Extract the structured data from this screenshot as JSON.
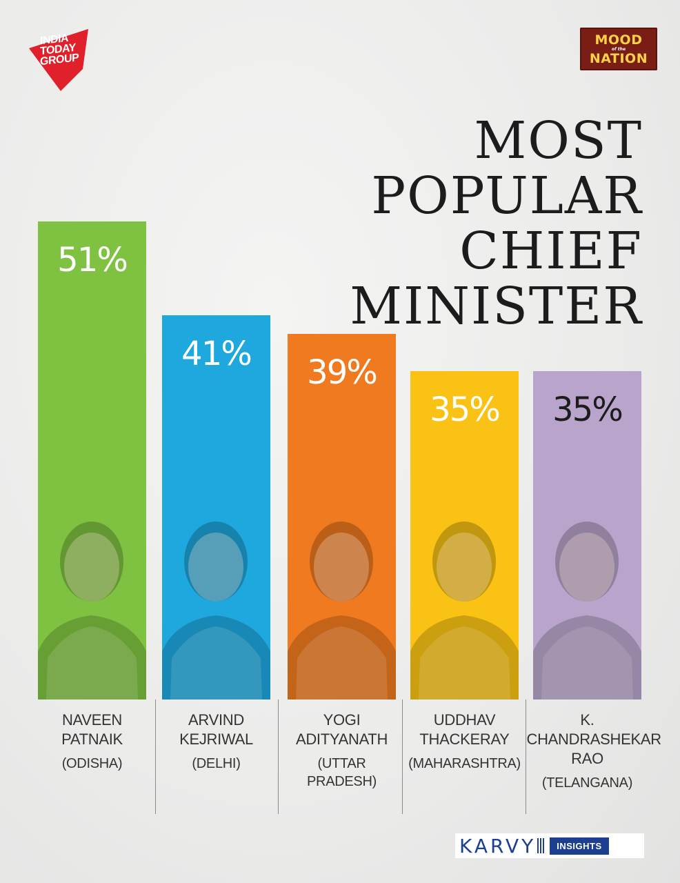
{
  "brand": {
    "logo_lines": [
      "INDIA",
      "TODAY",
      "GROUP"
    ],
    "badge_top": "MOOD",
    "badge_mid": "of the",
    "badge_bottom": "NATION",
    "sponsor_word": "KARVY",
    "sponsor_tag": "INSIGHTS"
  },
  "colors": {
    "logo_red": "#e0202a",
    "badge_bg": "#7a1d14",
    "sponsor_blue": "#1d3f8f"
  },
  "chart_data": {
    "type": "bar",
    "title_lines": [
      "MOST",
      "POPULAR",
      "CHIEF",
      "MINISTER"
    ],
    "unit": "%",
    "ylim": [
      0,
      51
    ],
    "bars": [
      {
        "value": 51,
        "label": "51%",
        "name_lines": [
          "NAVEEN",
          "PATNAIK"
        ],
        "state_lines": [
          "(ODISHA)"
        ],
        "color": "#7fc241",
        "text_color": "#ffffff",
        "portrait": "naveen-patnaik-photo"
      },
      {
        "value": 41,
        "label": "41%",
        "name_lines": [
          "ARVIND",
          "KEJRIWAL"
        ],
        "state_lines": [
          "(DELHI)"
        ],
        "color": "#1ea8de",
        "text_color": "#ffffff",
        "portrait": "arvind-kejriwal-photo"
      },
      {
        "value": 39,
        "label": "39%",
        "name_lines": [
          "YOGI",
          "ADITYANATH"
        ],
        "state_lines": [
          "(UTTAR",
          "PRADESH)"
        ],
        "color": "#f07a1f",
        "text_color": "#ffffff",
        "portrait": "yogi-adityanath-photo"
      },
      {
        "value": 35,
        "label": "35%",
        "name_lines": [
          "UDDHAV",
          "THACKERAY"
        ],
        "state_lines": [
          "(MAHARASHTRA)"
        ],
        "color": "#f9c215",
        "text_color": "#ffffff",
        "portrait": "uddhav-thackeray-photo"
      },
      {
        "value": 35,
        "label": "35%",
        "name_lines": [
          "K.",
          "CHANDRASHEKAR",
          "RAO"
        ],
        "state_lines": [
          "(TELANGANA)"
        ],
        "color": "#b9a5cb",
        "text_color": "#1c1c1c",
        "portrait": "k-chandrashekar-rao-photo"
      }
    ]
  }
}
